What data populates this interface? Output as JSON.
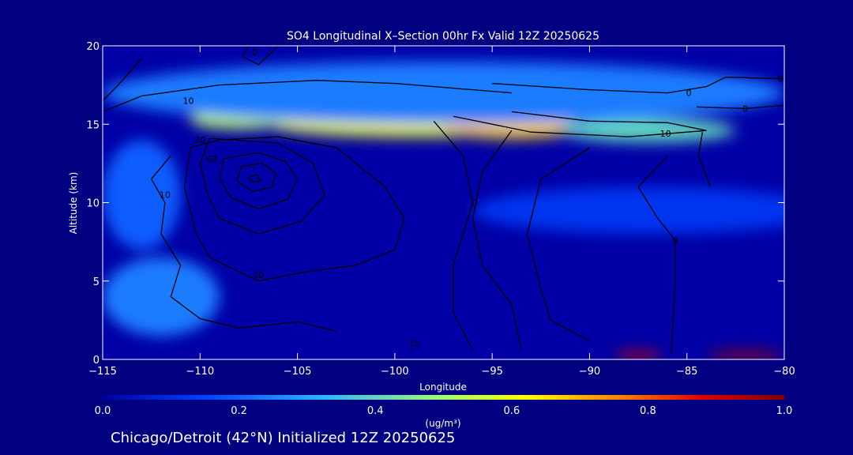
{
  "chart_data": {
    "type": "heatmap",
    "title": "SO4 Longitudinal X–Section 00hr  Fx Valid 12Z 20250625",
    "xlabel": "Longitude",
    "ylabel": "Altitude (km)",
    "xlim": [
      -115,
      -80
    ],
    "ylim": [
      0,
      20
    ],
    "x_ticks": [
      -115,
      -110,
      -105,
      -100,
      -95,
      -90,
      -85,
      -80
    ],
    "x_tick_labels": [
      "−115",
      "−110",
      "−105",
      "−100",
      "−95",
      "−90",
      "−85",
      "−80"
    ],
    "y_ticks": [
      0,
      5,
      10,
      15,
      20
    ],
    "y_tick_labels": [
      "0",
      "5",
      "10",
      "15",
      "20"
    ],
    "colorbar": {
      "min": 0.0,
      "max": 1.0,
      "ticks": [
        0.0,
        0.2,
        0.4,
        0.6,
        0.8,
        1.0
      ],
      "tick_labels": [
        "0.0",
        "0.2",
        "0.4",
        "0.6",
        "0.8",
        "1.0"
      ],
      "units": "(ug/m³)",
      "colors": [
        "#0000a0",
        "#0040ff",
        "#30b0ff",
        "#a0ff70",
        "#ffff00",
        "#ff8000",
        "#e00000",
        "#800000"
      ]
    },
    "heat_patches": [
      {
        "lon": -99,
        "alt": 15.0,
        "lon_w": 15,
        "alt_w": 1.6,
        "value": 0.55
      },
      {
        "lon": -94,
        "alt": 14.8,
        "lon_w": 7,
        "alt_w": 1.4,
        "value": 0.62
      },
      {
        "lon": -108,
        "alt": 15.3,
        "lon_w": 5,
        "alt_w": 1.2,
        "value": 0.48
      },
      {
        "lon": -87,
        "alt": 14.6,
        "lon_w": 9,
        "alt_w": 1.5,
        "value": 0.35
      },
      {
        "lon": -97.5,
        "alt": 17.0,
        "lon_w": 35,
        "alt_w": 4.0,
        "value": 0.22
      },
      {
        "lon": -113,
        "alt": 10.5,
        "lon_w": 4,
        "alt_w": 7,
        "value": 0.18
      },
      {
        "lon": -112,
        "alt": 4.0,
        "lon_w": 6,
        "alt_w": 5,
        "value": 0.22
      },
      {
        "lon": -87,
        "alt": 9.5,
        "lon_w": 18,
        "alt_w": 3,
        "value": 0.12
      },
      {
        "lon": -87.5,
        "alt": 0.25,
        "lon_w": 2.5,
        "alt_w": 0.5,
        "value": 0.9
      },
      {
        "lon": -82,
        "alt": 0.25,
        "lon_w": 4,
        "alt_w": 0.5,
        "value": 0.95
      }
    ],
    "contours": [
      {
        "label": "0",
        "label_lon": -107.2,
        "label_alt": 19.6,
        "points": [
          [
            -107.5,
            20
          ],
          [
            -107.8,
            19.3
          ],
          [
            -107,
            18.8
          ],
          [
            -106.3,
            19.6
          ],
          [
            -106,
            20
          ]
        ]
      },
      {
        "label": "0",
        "label_lon": -84.9,
        "label_alt": 17.0,
        "points": [
          [
            -95,
            17.6
          ],
          [
            -90,
            17.2
          ],
          [
            -86,
            17.0
          ],
          [
            -84,
            17.4
          ],
          [
            -83,
            18.0
          ],
          [
            -80,
            17.9
          ]
        ]
      },
      {
        "label": "0",
        "label_lon": -82,
        "label_alt": 16.0,
        "points": [
          [
            -84.5,
            16.1
          ],
          [
            -82,
            16.0
          ],
          [
            -80,
            16.2
          ]
        ]
      },
      {
        "label": "0",
        "label_lon": -80.2,
        "label_alt": 17.9,
        "points": []
      },
      {
        "label": "10",
        "label_lon": -110.6,
        "label_alt": 16.5,
        "points": [
          [
            -115,
            15.8
          ],
          [
            -113,
            16.8
          ],
          [
            -109,
            17.5
          ],
          [
            -104,
            17.8
          ],
          [
            -100,
            17.6
          ],
          [
            -97,
            17.3
          ],
          [
            -94,
            17.0
          ]
        ]
      },
      {
        "label": "10",
        "label_lon": -111.8,
        "label_alt": 10.5,
        "points": [
          [
            -111.5,
            13.0
          ],
          [
            -112.5,
            11.5
          ],
          [
            -111.8,
            10.0
          ],
          [
            -112.0,
            8.0
          ],
          [
            -111,
            6.0
          ],
          [
            -111.5,
            4.0
          ],
          [
            -110.0,
            2.6
          ],
          [
            -108,
            2.0
          ],
          [
            -105,
            2.4
          ],
          [
            -103,
            1.8
          ]
        ]
      },
      {
        "label": "10",
        "label_lon": -107,
        "label_alt": 5.4,
        "points": [
          [
            -110.5,
            13.5
          ],
          [
            -110.8,
            11.0
          ],
          [
            -110.2,
            8.0
          ],
          [
            -109.5,
            6.5
          ],
          [
            -107,
            5.0
          ],
          [
            -104.5,
            5.6
          ],
          [
            -102,
            6.0
          ],
          [
            -100,
            7.0
          ],
          [
            -99.5,
            9.0
          ],
          [
            -100.5,
            11.0
          ],
          [
            -103,
            13.5
          ],
          [
            -106,
            14.2
          ],
          [
            -109,
            14.0
          ],
          [
            -110.5,
            13.5
          ]
        ]
      },
      {
        "label": "10",
        "label_lon": -86.1,
        "label_alt": 14.4,
        "points": [
          [
            -97,
            15.5
          ],
          [
            -93,
            14.5
          ],
          [
            -88,
            14.2
          ],
          [
            -86,
            14.4
          ],
          [
            -84,
            14.6
          ],
          [
            -86,
            15.1
          ],
          [
            -90,
            15.2
          ],
          [
            -94,
            15.8
          ]
        ]
      },
      {
        "label": "10",
        "label_lon": -99.0,
        "label_alt": 1.0,
        "points": []
      },
      {
        "label": "20",
        "label_lon": -110.0,
        "label_alt": 14.0,
        "points": [
          [
            -109.5,
            14.1
          ],
          [
            -110,
            12.5
          ],
          [
            -109.6,
            10.5
          ],
          [
            -109,
            9.0
          ],
          [
            -107,
            8.0
          ],
          [
            -104.8,
            8.8
          ],
          [
            -103.6,
            10.5
          ],
          [
            -104.2,
            12.5
          ],
          [
            -106,
            13.8
          ],
          [
            -109.5,
            14.1
          ]
        ]
      },
      {
        "label": "40",
        "label_lon": -109.4,
        "label_alt": 12.8,
        "points": [
          [
            -108.8,
            12.8
          ],
          [
            -109,
            11.5
          ],
          [
            -108.4,
            10.3
          ],
          [
            -107,
            9.6
          ],
          [
            -105.5,
            10.2
          ],
          [
            -105.0,
            11.5
          ],
          [
            -105.6,
            12.6
          ],
          [
            -107,
            13.2
          ],
          [
            -108.8,
            12.8
          ]
        ]
      },
      {
        "label": "",
        "label_lon": 0,
        "label_alt": 0,
        "points": [
          [
            -107.9,
            12.3
          ],
          [
            -108.1,
            11.4
          ],
          [
            -107.3,
            10.7
          ],
          [
            -106.3,
            11.0
          ],
          [
            -106.1,
            11.9
          ],
          [
            -106.8,
            12.5
          ],
          [
            -107.9,
            12.3
          ]
        ]
      },
      {
        "label": "",
        "label_lon": 0,
        "label_alt": 0,
        "points": [
          [
            -107.5,
            11.6
          ],
          [
            -107.3,
            11.3
          ],
          [
            -106.9,
            11.4
          ],
          [
            -107.1,
            11.8
          ],
          [
            -107.5,
            11.6
          ]
        ]
      },
      {
        "label": "",
        "label_lon": 0,
        "label_alt": 0,
        "points": [
          [
            -98,
            15.2
          ],
          [
            -96.5,
            13.0
          ],
          [
            -96.0,
            10.0
          ],
          [
            -97.0,
            6.0
          ],
          [
            -97.0,
            3.0
          ],
          [
            -96.0,
            0.6
          ]
        ]
      },
      {
        "label": "0",
        "label_lon": -95.9,
        "label_alt": 10.0,
        "points": [
          [
            -94,
            14.6
          ],
          [
            -95.5,
            12.0
          ],
          [
            -96.0,
            9.0
          ],
          [
            -95.5,
            6.0
          ],
          [
            -94,
            3.5
          ],
          [
            -93.5,
            0.6
          ]
        ]
      },
      {
        "label": "",
        "label_lon": 0,
        "label_alt": 0,
        "points": [
          [
            -90,
            13.5
          ],
          [
            -92.5,
            11.5
          ],
          [
            -93.2,
            8.0
          ],
          [
            -92.5,
            4.5
          ],
          [
            -92.0,
            2.5
          ],
          [
            -90.0,
            1.2
          ]
        ]
      },
      {
        "label": "0",
        "label_lon": -85.6,
        "label_alt": 7.6,
        "points": [
          [
            -86,
            13.0
          ],
          [
            -87.5,
            11.0
          ],
          [
            -86.5,
            9.0
          ],
          [
            -85.6,
            7.6
          ],
          [
            -85.6,
            5.0
          ],
          [
            -85.8,
            0.4
          ]
        ]
      },
      {
        "label": "",
        "label_lon": 0,
        "label_alt": 0,
        "points": [
          [
            -84.2,
            14.5
          ],
          [
            -84.4,
            13.0
          ],
          [
            -83.8,
            11.0
          ]
        ]
      },
      {
        "label": "",
        "label_lon": 0,
        "label_alt": 0,
        "points": [
          [
            -113,
            19.2
          ],
          [
            -114.2,
            17.5
          ],
          [
            -115,
            16.5
          ]
        ]
      }
    ]
  },
  "footer": {
    "caption": "Chicago/Detroit (42°N) Initialized 12Z 20250625"
  }
}
